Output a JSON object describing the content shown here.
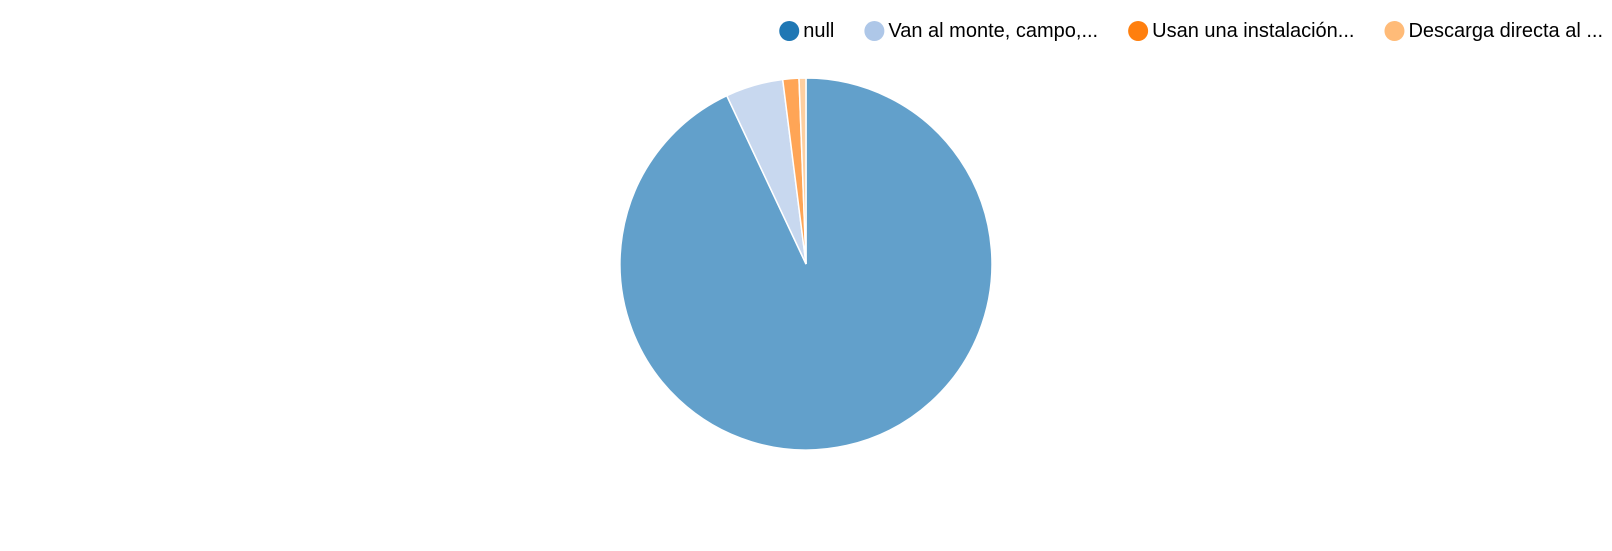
{
  "chart_data": {
    "type": "pie",
    "title": "",
    "legend_position": "top-right",
    "series": [
      {
        "name": "null",
        "value": 93.0,
        "swatch_color": "#1f77b4",
        "slice_color": "#62a0cb"
      },
      {
        "name": "Van al monte, campo,...",
        "value": 5.0,
        "swatch_color": "#aec7e8",
        "slice_color": "#c8d8ef"
      },
      {
        "name": "Usan una instalación...",
        "value": 1.4,
        "swatch_color": "#ff7f0e",
        "slice_color": "#ffa556"
      },
      {
        "name": "Descarga directa al ...",
        "value": 0.6,
        "swatch_color": "#ffbb78",
        "slice_color": "#ffcfa0"
      }
    ]
  }
}
